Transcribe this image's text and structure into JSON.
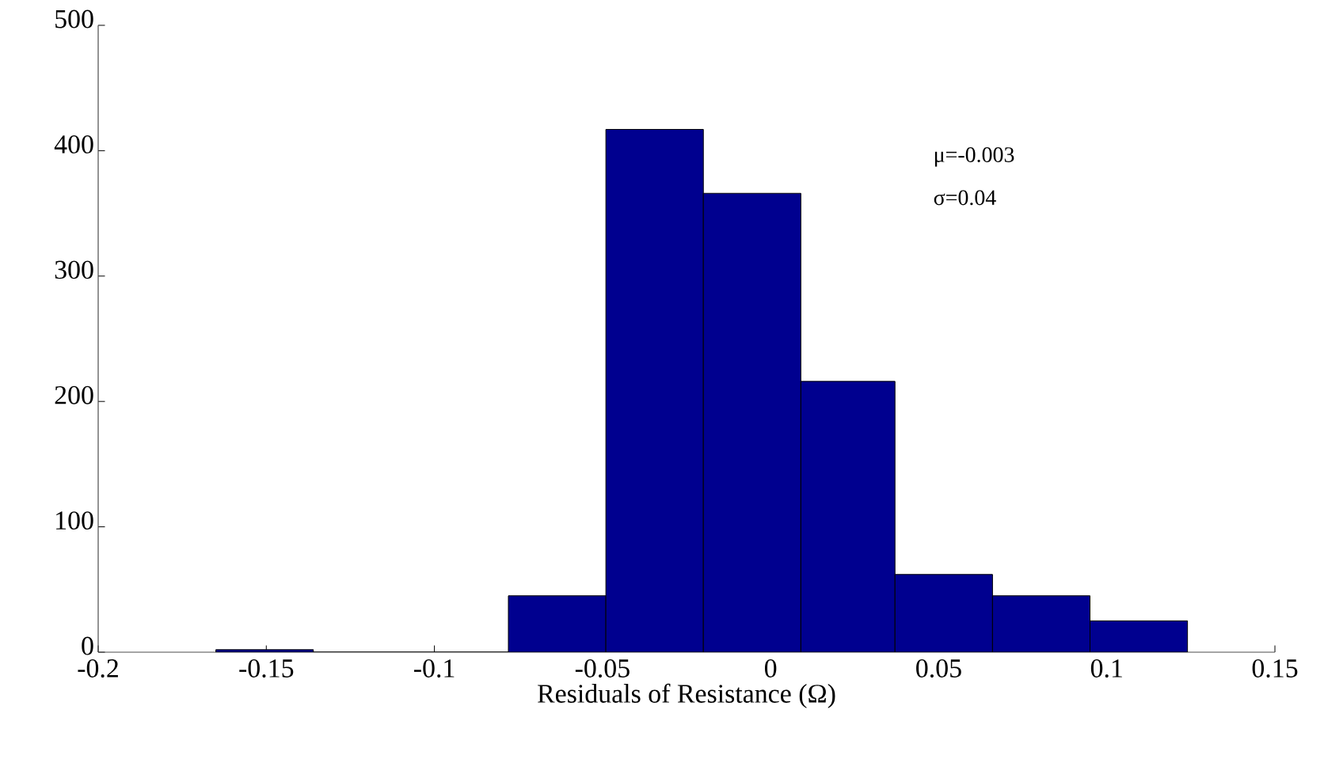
{
  "chart_data": {
    "type": "histogram",
    "xlabel": "Residuals of Resistance (Ω)",
    "bins": [
      -0.165,
      -0.136,
      -0.078,
      -0.049,
      -0.02,
      0.009,
      0.037,
      0.066,
      0.095,
      0.124
    ],
    "values": [
      2,
      0,
      45,
      417,
      366,
      216,
      62,
      45,
      25
    ],
    "color": "#00008f",
    "xlim": [
      -0.2,
      0.15
    ],
    "xticks": [
      -0.2,
      -0.15,
      -0.1,
      -0.05,
      0,
      0.05,
      0.1,
      0.15
    ],
    "ylim": [
      0,
      500
    ],
    "yticks": [
      0,
      100,
      200,
      300,
      400,
      500
    ],
    "annotations": [
      "μ=-0.003",
      "σ=0.04"
    ],
    "grid": false
  }
}
